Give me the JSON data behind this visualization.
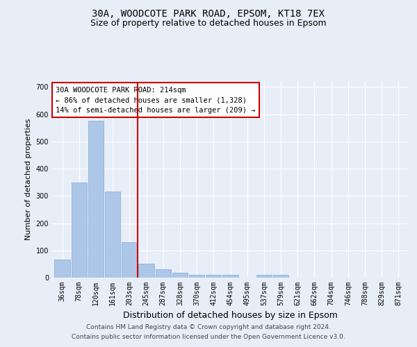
{
  "title_line1": "30A, WOODCOTE PARK ROAD, EPSOM, KT18 7EX",
  "title_line2": "Size of property relative to detached houses in Epsom",
  "xlabel": "Distribution of detached houses by size in Epsom",
  "ylabel": "Number of detached properties",
  "bar_categories": [
    "36sqm",
    "78sqm",
    "120sqm",
    "161sqm",
    "203sqm",
    "245sqm",
    "287sqm",
    "328sqm",
    "370sqm",
    "412sqm",
    "454sqm",
    "495sqm",
    "537sqm",
    "579sqm",
    "621sqm",
    "662sqm",
    "704sqm",
    "746sqm",
    "788sqm",
    "829sqm",
    "871sqm"
  ],
  "bar_values": [
    65,
    350,
    575,
    315,
    130,
    50,
    30,
    18,
    10,
    10,
    10,
    0,
    10,
    10,
    0,
    0,
    0,
    0,
    0,
    0,
    0
  ],
  "bar_color": "#aec6e8",
  "bar_edge_color": "#7aafd4",
  "vline_color": "#cc0000",
  "annotation_box_text": "30A WOODCOTE PARK ROAD: 214sqm\n← 86% of detached houses are smaller (1,328)\n14% of semi-detached houses are larger (209) →",
  "ylim": [
    0,
    720
  ],
  "yticks": [
    0,
    100,
    200,
    300,
    400,
    500,
    600,
    700
  ],
  "bg_color": "#e8eef8",
  "plot_bg_color": "#e8eef8",
  "footer_line1": "Contains HM Land Registry data © Crown copyright and database right 2024.",
  "footer_line2": "Contains public sector information licensed under the Open Government Licence v3.0.",
  "grid_color": "#ffffff",
  "title_fontsize": 10,
  "subtitle_fontsize": 9,
  "tick_fontsize": 7,
  "ylabel_fontsize": 8,
  "xlabel_fontsize": 9,
  "annotation_fontsize": 7.5,
  "footer_fontsize": 6.5
}
